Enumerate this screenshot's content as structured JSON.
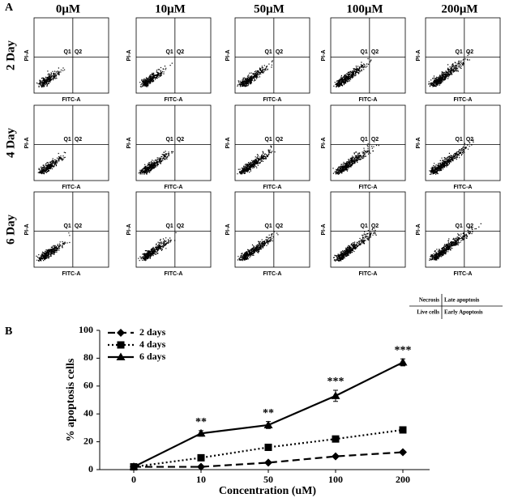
{
  "panel_a": {
    "label": "A",
    "columns": [
      "0μM",
      "10μM",
      "50μM",
      "100μM",
      "200μM"
    ],
    "rows": [
      "2 Day",
      "4 Day",
      "6 Day"
    ],
    "plot_labels": {
      "y": "PI-A",
      "x": "FITC-A",
      "q1": "Q1",
      "q2": "Q2"
    },
    "quadrant_key": {
      "top_left": "Necrosis",
      "top_right": "Late apoptosis",
      "bottom_left": "Live cells",
      "bottom_right": "Early Apoptosis"
    }
  },
  "chart_data": {
    "type": "line",
    "panel_label": "B",
    "categories": [
      "0",
      "10",
      "50",
      "100",
      "200"
    ],
    "series": [
      {
        "name": "2 days",
        "color": "#000000",
        "dash": "dashed",
        "marker": "diamond",
        "values": [
          2,
          2,
          5,
          9.5,
          12.5
        ],
        "errors": [
          0.5,
          0.5,
          0.5,
          1,
          1
        ]
      },
      {
        "name": "4 days",
        "color": "#000000",
        "dash": "dotted",
        "marker": "square",
        "values": [
          2,
          8.5,
          16,
          22,
          28.5
        ],
        "errors": [
          0.5,
          1,
          1,
          1,
          2
        ]
      },
      {
        "name": "6 days",
        "color": "#000000",
        "dash": "solid",
        "marker": "triangle",
        "values": [
          2,
          26,
          32,
          53,
          77
        ],
        "errors": [
          0.5,
          2,
          2.5,
          4,
          2.5
        ],
        "annotations": [
          null,
          "**",
          "**",
          "***",
          "***"
        ]
      }
    ],
    "ylim": [
      0,
      100
    ],
    "yticks": [
      0,
      20,
      40,
      60,
      80,
      100
    ],
    "xlabel": "Concentration (uM)",
    "ylabel": "% apoptosis cells",
    "legend": "upper left",
    "grid": false
  }
}
